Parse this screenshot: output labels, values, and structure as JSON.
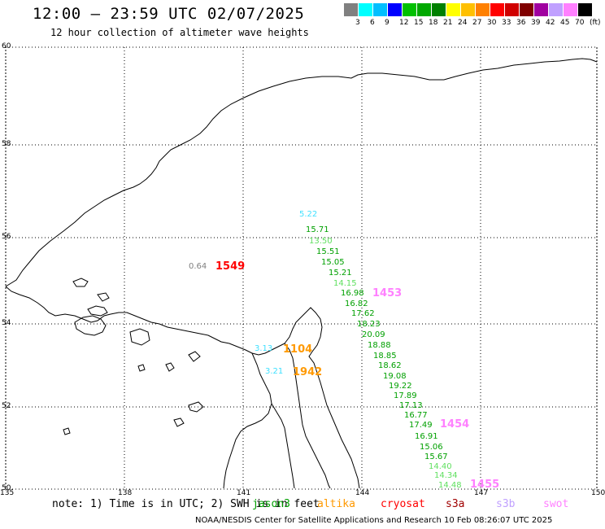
{
  "title": "12:00 — 23:59 UTC 02/07/2025",
  "subtitle": "12 hour collection of altimeter wave heights",
  "color_scale": {
    "unit": "(ft)",
    "colors": [
      "#808080",
      "#00ffff",
      "#00bfff",
      "#0000ff",
      "#00c000",
      "#00a800",
      "#008000",
      "#ffff00",
      "#ffc000",
      "#ff8000",
      "#ff0000",
      "#d00000",
      "#800000",
      "#a000a0",
      "#c0a0ff",
      "#ff80ff",
      "#000000"
    ],
    "labels": [
      "3",
      "6",
      "9",
      "12",
      "15",
      "18",
      "21",
      "24",
      "27",
      "30",
      "33",
      "36",
      "39",
      "42",
      "45",
      "70"
    ]
  },
  "lat_labels": [
    "60",
    "58",
    "56",
    "54",
    "52",
    "50"
  ],
  "lon_labels": [
    "135",
    "138",
    "141",
    "144",
    "147",
    "150"
  ],
  "track_values": [
    {
      "v": "5.22",
      "c": "#40e0ff"
    },
    {
      "v": "15.71",
      "c": "#00a000"
    },
    {
      "v": "13.50",
      "c": "#60e060"
    },
    {
      "v": "15.51",
      "c": "#00a000"
    },
    {
      "v": "15.05",
      "c": "#00a000"
    },
    {
      "v": "15.21",
      "c": "#00a000"
    },
    {
      "v": "14.15",
      "c": "#60e060"
    },
    {
      "v": "16.98",
      "c": "#00a000"
    },
    {
      "v": "16.82",
      "c": "#00a000"
    },
    {
      "v": "17.62",
      "c": "#00a000"
    },
    {
      "v": "18.23",
      "c": "#00a000"
    },
    {
      "v": "20.09",
      "c": "#00a000"
    },
    {
      "v": "18.88",
      "c": "#00a000"
    },
    {
      "v": "18.85",
      "c": "#00a000"
    },
    {
      "v": "18.62",
      "c": "#00a000"
    },
    {
      "v": "19.08",
      "c": "#00a000"
    },
    {
      "v": "19.22",
      "c": "#00a000"
    },
    {
      "v": "17.89",
      "c": "#00a000"
    },
    {
      "v": "17.13",
      "c": "#00a000"
    },
    {
      "v": "16.77",
      "c": "#00a000"
    },
    {
      "v": "17.49",
      "c": "#00a000"
    },
    {
      "v": "16.91",
      "c": "#00a000"
    },
    {
      "v": "15.06",
      "c": "#00a000"
    },
    {
      "v": "15.67",
      "c": "#00a000"
    },
    {
      "v": "14.40",
      "c": "#60e060"
    },
    {
      "v": "14.34",
      "c": "#60e060"
    },
    {
      "v": "14.48",
      "c": "#60e060"
    }
  ],
  "other_values": [
    {
      "v": "0.64",
      "c": "#808080"
    },
    {
      "v": "3.13",
      "c": "#40e0ff"
    },
    {
      "v": "3.21",
      "c": "#40e0ff"
    }
  ],
  "time_labels": [
    {
      "v": "1549",
      "c": "#ff0000"
    },
    {
      "v": "1453",
      "c": "#ff80ff"
    },
    {
      "v": "1104",
      "c": "#ff9900"
    },
    {
      "v": "1942",
      "c": "#ff9900"
    },
    {
      "v": "1454",
      "c": "#ff80ff"
    },
    {
      "v": "1455",
      "c": "#ff80ff"
    }
  ],
  "note": "note: 1) Time is in UTC; 2) SWH is in feet",
  "satellites": [
    {
      "name": "jason3",
      "c": "#00a000"
    },
    {
      "name": "altika",
      "c": "#ff9900"
    },
    {
      "name": "cryosat",
      "c": "#ff0000"
    },
    {
      "name": "s3a",
      "c": "#a00000"
    },
    {
      "name": "s3b",
      "c": "#c0a0ff"
    },
    {
      "name": "swot",
      "c": "#ff80ff"
    }
  ],
  "credit": "NOAA/NESDIS Center for Satellite Applications and Research    10 Feb 08:26:07 UTC 2025"
}
